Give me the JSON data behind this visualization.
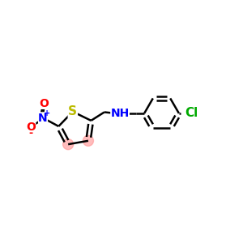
{
  "background_color": "#ffffff",
  "bond_color": "#000000",
  "S_color": "#bbbb00",
  "N_color": "#0000ff",
  "O_color": "#ff0000",
  "Cl_color": "#00aa00",
  "highlight_color": "#ff9999",
  "highlight_alpha": 0.65,
  "line_width": 1.8,
  "dbo": 0.12,
  "label_font_size": 10,
  "figsize": [
    3.0,
    3.0
  ],
  "dpi": 100,
  "xlim": [
    0,
    10
  ],
  "ylim": [
    2,
    8
  ]
}
